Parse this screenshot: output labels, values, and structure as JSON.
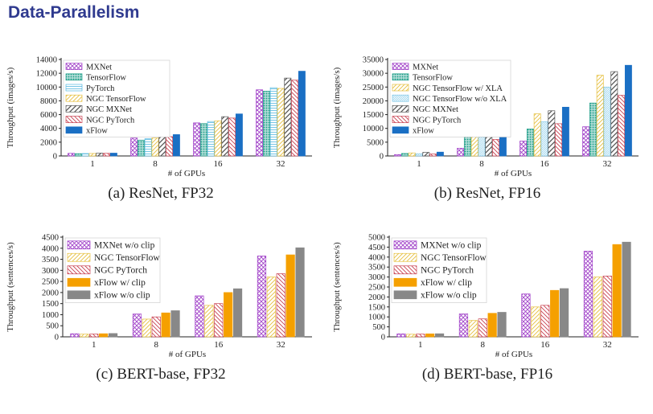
{
  "slide_title": "Data-Parallelism",
  "colors": {
    "title": "#2f3a8f",
    "MXNet": "#a040c8",
    "TensorFlow": "#1e9e88",
    "PyTorch": "#55b8e0",
    "NGC TensorFlow": "#e6c040",
    "NGC MXNet": "#555555",
    "NGC PyTorch": "#c84050",
    "xFlow": "#1a6fc4",
    "xFlow w/ clip": "#f5a000"
  },
  "chart_data": [
    {
      "type": "bar",
      "caption": "(a) ResNet, FP32",
      "xlabel": "# of GPUs",
      "ylabel": "Throughput (images/s)",
      "ylim": [
        0,
        14000
      ],
      "yticks": [
        0,
        2000,
        4000,
        6000,
        8000,
        10000,
        12000,
        14000
      ],
      "categories": [
        "1",
        "8",
        "16",
        "32"
      ],
      "legend_position": "top-left",
      "series": [
        {
          "name": "MXNet",
          "values": [
            380,
            2600,
            4800,
            9600
          ]
        },
        {
          "name": "TensorFlow",
          "values": [
            330,
            2300,
            4700,
            9400
          ]
        },
        {
          "name": "PyTorch",
          "values": [
            350,
            2500,
            5000,
            9900
          ]
        },
        {
          "name": "NGC TensorFlow",
          "values": [
            360,
            2600,
            5100,
            9800
          ]
        },
        {
          "name": "NGC MXNet",
          "values": [
            410,
            3000,
            5700,
            11300
          ]
        },
        {
          "name": "NGC PyTorch",
          "values": [
            380,
            2800,
            5500,
            11000
          ]
        },
        {
          "name": "xFlow",
          "values": [
            410,
            3100,
            6100,
            12300
          ]
        }
      ]
    },
    {
      "type": "bar",
      "caption": "(b) ResNet, FP16",
      "xlabel": "# of GPUs",
      "ylabel": "Throughput (images/s)",
      "ylim": [
        0,
        35000
      ],
      "yticks": [
        0,
        5000,
        10000,
        15000,
        20000,
        25000,
        30000,
        35000
      ],
      "categories": [
        "1",
        "8",
        "16",
        "32"
      ],
      "legend_position": "top-left",
      "series": [
        {
          "name": "MXNet",
          "values": [
            500,
            2800,
            5400,
            10600
          ]
        },
        {
          "name": "TensorFlow",
          "values": [
            900,
            7000,
            9800,
            19200
          ]
        },
        {
          "name": "NGC TensorFlow w/ XLA",
          "values": [
            1100,
            8200,
            15300,
            29300
          ]
        },
        {
          "name": "NGC TensorFlow w/o XLA",
          "values": [
            800,
            6800,
            12400,
            25000
          ]
        },
        {
          "name": "NGC MXNet",
          "values": [
            1300,
            9500,
            16400,
            30600
          ]
        },
        {
          "name": "NGC PyTorch",
          "values": [
            700,
            6000,
            11700,
            22000
          ]
        },
        {
          "name": "xFlow",
          "values": [
            1400,
            10300,
            17700,
            32900
          ]
        }
      ]
    },
    {
      "type": "bar",
      "caption": "(c) BERT-base, FP32",
      "xlabel": "# of GPUs",
      "ylabel": "Throughput (sentences/s)",
      "ylim": [
        0,
        4500
      ],
      "yticks": [
        0,
        500,
        1000,
        1500,
        2000,
        2500,
        3000,
        3500,
        4000,
        4500
      ],
      "categories": [
        "1",
        "8",
        "16",
        "32"
      ],
      "legend_position": "top-left",
      "series": [
        {
          "name": "MXNet w/o clip",
          "values": [
            140,
            1030,
            1850,
            3650
          ]
        },
        {
          "name": "NGC TensorFlow",
          "values": [
            120,
            800,
            1420,
            2700
          ]
        },
        {
          "name": "NGC PyTorch",
          "values": [
            125,
            900,
            1500,
            2850
          ]
        },
        {
          "name": "xFlow w/ clip",
          "values": [
            140,
            1080,
            2000,
            3700
          ]
        },
        {
          "name": "xFlow w/o clip",
          "values": [
            150,
            1180,
            2170,
            4020
          ]
        }
      ]
    },
    {
      "type": "bar",
      "caption": "(d) BERT-base, FP16",
      "xlabel": "# of GPUs",
      "ylabel": "Throughput (sentences/s)",
      "ylim": [
        0,
        5000
      ],
      "yticks": [
        0,
        500,
        1000,
        1500,
        2000,
        2500,
        3000,
        3500,
        4000,
        4500,
        5000
      ],
      "categories": [
        "1",
        "8",
        "16",
        "32"
      ],
      "legend_position": "top-left",
      "series": [
        {
          "name": "MXNet w/o clip",
          "values": [
            150,
            1150,
            2150,
            4300
          ]
        },
        {
          "name": "NGC TensorFlow",
          "values": [
            130,
            820,
            1500,
            3000
          ]
        },
        {
          "name": "NGC PyTorch",
          "values": [
            135,
            900,
            1580,
            3050
          ]
        },
        {
          "name": "xFlow w/ clip",
          "values": [
            150,
            1180,
            2330,
            4630
          ]
        },
        {
          "name": "xFlow w/o clip",
          "values": [
            155,
            1230,
            2420,
            4750
          ]
        }
      ]
    }
  ]
}
